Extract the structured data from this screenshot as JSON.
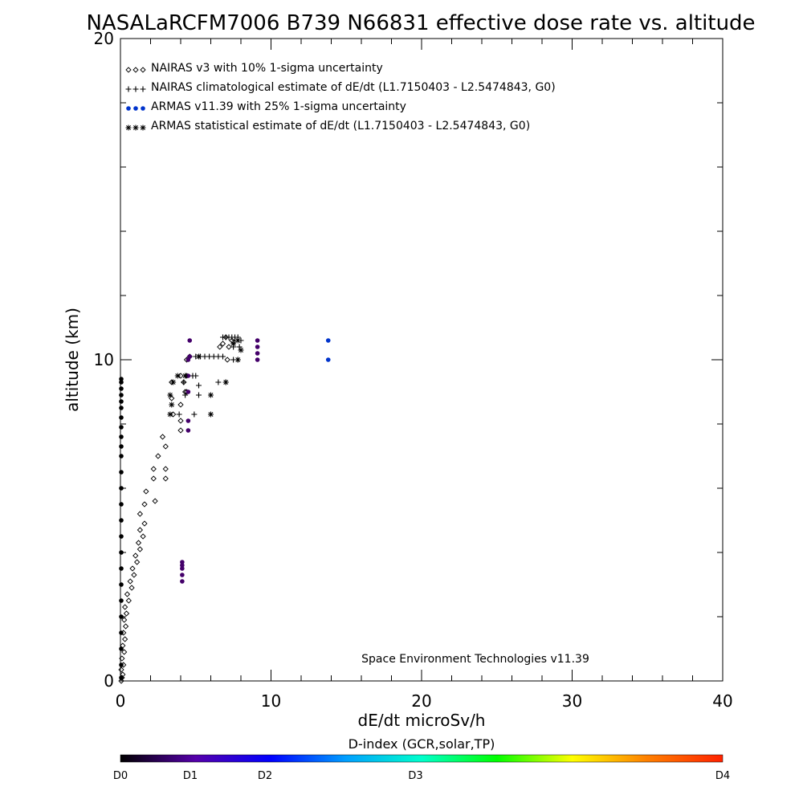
{
  "chart_data": {
    "type": "scatter",
    "title": "NASALaRCFM7006  B739 N66831 effective dose rate vs. altitude",
    "xlabel": "dE/dt microSv/h",
    "ylabel": "altitude (km)",
    "xlim": [
      0,
      40
    ],
    "ylim": [
      0,
      20
    ],
    "x_ticks": [
      "0",
      "10",
      "20",
      "30",
      "40"
    ],
    "y_ticks": [
      "0",
      "10",
      "20"
    ],
    "legend_position": "top-left",
    "annotation": "Space Environment Technologies v11.39",
    "legend": [
      {
        "label": "NAIRAS v3 with 10% 1-sigma uncertainty",
        "marker": "diamond",
        "color": "#000000"
      },
      {
        "label": "NAIRAS climatological estimate of dE/dt (L1.7150403 - L2.5474843, G0)",
        "marker": "plus",
        "color": "#000000"
      },
      {
        "label": "ARMAS v11.39 with 25% 1-sigma uncertainty",
        "marker": "dot",
        "color": "#0033cc"
      },
      {
        "label": "ARMAS statistical estimate of dE/dt (L1.7150403 - L2.5474843, G0)",
        "marker": "asterisk",
        "color": "#000000"
      }
    ],
    "series": [
      {
        "marker": "diamond",
        "points": [
          [
            0.05,
            0.0
          ],
          [
            0.1,
            0.1
          ],
          [
            0.15,
            0.2
          ],
          [
            0.05,
            0.35
          ],
          [
            0.2,
            0.5
          ],
          [
            0.1,
            0.7
          ],
          [
            0.25,
            0.9
          ],
          [
            0.15,
            1.1
          ],
          [
            0.3,
            1.3
          ],
          [
            0.2,
            1.5
          ],
          [
            0.35,
            1.7
          ],
          [
            0.25,
            1.9
          ],
          [
            0.4,
            2.1
          ],
          [
            0.3,
            2.3
          ],
          [
            0.55,
            2.5
          ],
          [
            0.45,
            2.7
          ],
          [
            0.75,
            2.9
          ],
          [
            0.65,
            3.1
          ],
          [
            0.9,
            3.3
          ],
          [
            0.8,
            3.5
          ],
          [
            1.1,
            3.7
          ],
          [
            1.0,
            3.9
          ],
          [
            1.3,
            4.1
          ],
          [
            1.2,
            4.3
          ],
          [
            1.5,
            4.5
          ],
          [
            1.3,
            4.7
          ],
          [
            1.6,
            4.9
          ],
          [
            1.3,
            5.2
          ],
          [
            1.6,
            5.5
          ],
          [
            2.3,
            5.6
          ],
          [
            1.7,
            5.9
          ],
          [
            2.2,
            6.3
          ],
          [
            3.0,
            6.3
          ],
          [
            2.2,
            6.6
          ],
          [
            3.0,
            6.6
          ],
          [
            2.5,
            7.0
          ],
          [
            3.0,
            7.3
          ],
          [
            2.8,
            7.6
          ],
          [
            4.0,
            7.8
          ],
          [
            4.0,
            8.1
          ],
          [
            3.5,
            8.3
          ],
          [
            4.0,
            8.6
          ],
          [
            3.4,
            8.8
          ],
          [
            4.3,
            9.0
          ],
          [
            3.4,
            9.3
          ],
          [
            4.0,
            9.5
          ],
          [
            4.2,
            9.3
          ],
          [
            4.4,
            9.0
          ],
          [
            4.4,
            9.5
          ],
          [
            4.4,
            10.0
          ],
          [
            4.6,
            10.1
          ],
          [
            6.6,
            10.4
          ],
          [
            6.8,
            10.5
          ],
          [
            7.0,
            10.7
          ],
          [
            7.2,
            10.4
          ],
          [
            7.4,
            10.6
          ],
          [
            7.1,
            10.0
          ]
        ]
      },
      {
        "marker": "plus",
        "points": [
          [
            3.9,
            8.3
          ],
          [
            4.9,
            8.3
          ],
          [
            4.3,
            8.9
          ],
          [
            5.2,
            8.9
          ],
          [
            4.2,
            9.3
          ],
          [
            5.2,
            9.2
          ],
          [
            4.8,
            9.5
          ],
          [
            5.0,
            9.5
          ],
          [
            6.5,
            9.3
          ],
          [
            7.0,
            9.3
          ],
          [
            7.5,
            10.0
          ],
          [
            7.8,
            10.0
          ],
          [
            7.5,
            10.4
          ],
          [
            7.9,
            10.4
          ],
          [
            7.6,
            10.6
          ],
          [
            8.0,
            10.6
          ],
          [
            5.0,
            10.1
          ],
          [
            5.3,
            10.1
          ],
          [
            5.6,
            10.1
          ],
          [
            5.9,
            10.1
          ],
          [
            6.2,
            10.1
          ],
          [
            6.5,
            10.1
          ],
          [
            6.8,
            10.1
          ],
          [
            6.8,
            10.7
          ],
          [
            7.0,
            10.7
          ],
          [
            7.2,
            10.7
          ],
          [
            7.4,
            10.7
          ],
          [
            7.6,
            10.7
          ],
          [
            7.8,
            10.7
          ]
        ]
      },
      {
        "marker": "dot",
        "color": "#0033cc",
        "points": [
          [
            13.8,
            10.0
          ],
          [
            13.8,
            10.6
          ]
        ]
      },
      {
        "marker": "dot",
        "color": "#44006a",
        "points": [
          [
            4.1,
            3.1
          ],
          [
            4.1,
            3.3
          ],
          [
            4.1,
            3.5
          ],
          [
            4.1,
            3.6
          ],
          [
            4.1,
            3.7
          ],
          [
            4.5,
            7.8
          ],
          [
            4.5,
            8.1
          ],
          [
            4.5,
            9.0
          ],
          [
            4.5,
            9.5
          ],
          [
            4.5,
            10.0
          ],
          [
            4.6,
            10.1
          ],
          [
            4.6,
            10.6
          ],
          [
            9.1,
            10.0
          ],
          [
            9.1,
            10.2
          ],
          [
            9.1,
            10.4
          ],
          [
            9.1,
            10.6
          ]
        ]
      },
      {
        "marker": "dot",
        "color": "#000000",
        "points": [
          [
            0.02,
            0.1
          ],
          [
            0.02,
            0.5
          ],
          [
            0.02,
            1.0
          ],
          [
            0.02,
            1.5
          ],
          [
            0.02,
            2.0
          ],
          [
            0.02,
            2.5
          ],
          [
            0.02,
            3.0
          ],
          [
            0.02,
            3.5
          ],
          [
            0.02,
            4.0
          ],
          [
            0.02,
            4.5
          ],
          [
            0.02,
            5.0
          ],
          [
            0.02,
            5.5
          ],
          [
            0.02,
            6.0
          ],
          [
            0.02,
            6.5
          ],
          [
            0.02,
            7.0
          ],
          [
            0.02,
            7.3
          ],
          [
            0.02,
            7.6
          ],
          [
            0.02,
            7.9
          ],
          [
            0.02,
            8.2
          ],
          [
            0.02,
            8.5
          ],
          [
            0.02,
            8.7
          ],
          [
            0.02,
            8.9
          ],
          [
            0.02,
            9.1
          ],
          [
            0.02,
            9.3
          ],
          [
            0.02,
            9.4
          ]
        ]
      },
      {
        "marker": "asterisk",
        "points": [
          [
            3.3,
            8.3
          ],
          [
            6.0,
            8.3
          ],
          [
            3.4,
            8.6
          ],
          [
            3.3,
            8.9
          ],
          [
            6.0,
            8.9
          ],
          [
            3.5,
            9.3
          ],
          [
            7.0,
            9.3
          ],
          [
            3.8,
            9.5
          ],
          [
            4.3,
            9.5
          ],
          [
            7.8,
            10.0
          ],
          [
            8.0,
            10.3
          ],
          [
            7.5,
            10.5
          ],
          [
            7.8,
            10.6
          ],
          [
            5.2,
            10.1
          ]
        ]
      }
    ],
    "colorbar": {
      "title": "D-index (GCR,solar,TP)",
      "labels": [
        "D0",
        "D1",
        "D2",
        "D3",
        "D4"
      ],
      "label_positions": [
        0,
        1.16,
        2.4,
        4.9,
        10
      ],
      "colors": [
        "#000000",
        "#5500aa",
        "#0000ff",
        "#00a0ff",
        "#00ffcc",
        "#00ff00",
        "#ffff00",
        "#ff7f00",
        "#ff2200"
      ]
    }
  }
}
